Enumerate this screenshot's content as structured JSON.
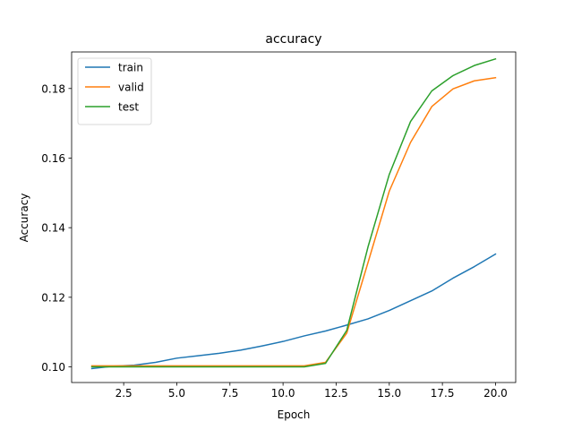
{
  "chart_data": {
    "type": "line",
    "title": "accuracy",
    "xlabel": "Epoch",
    "ylabel": "Accuracy",
    "xlim": [
      0.05,
      20.95
    ],
    "ylim": [
      0.0955,
      0.1905
    ],
    "xticks": [
      2.5,
      5.0,
      7.5,
      10.0,
      12.5,
      15.0,
      17.5,
      20.0
    ],
    "xtick_labels": [
      "2.5",
      "5.0",
      "7.5",
      "10.0",
      "12.5",
      "15.0",
      "17.5",
      "20.0"
    ],
    "yticks": [
      0.1,
      0.12,
      0.14,
      0.16,
      0.18
    ],
    "ytick_labels": [
      "0.10",
      "0.12",
      "0.14",
      "0.16",
      "0.18"
    ],
    "grid": false,
    "legend_position": "upper-left",
    "x": [
      1,
      2,
      3,
      4,
      5,
      6,
      7,
      8,
      9,
      10,
      11,
      12,
      13,
      14,
      15,
      16,
      17,
      18,
      19,
      20
    ],
    "series": [
      {
        "name": "train",
        "color": "#1f77b4",
        "values": [
          0.0995,
          0.1002,
          0.1005,
          0.1013,
          0.1025,
          0.1032,
          0.1039,
          0.1048,
          0.106,
          0.1073,
          0.1089,
          0.1103,
          0.112,
          0.1138,
          0.1162,
          0.119,
          0.1218,
          0.1255,
          0.1288,
          0.1324
        ]
      },
      {
        "name": "valid",
        "color": "#ff7f0e",
        "values": [
          0.1003,
          0.1003,
          0.1003,
          0.1003,
          0.1003,
          0.1003,
          0.1003,
          0.1003,
          0.1003,
          0.1003,
          0.1003,
          0.1013,
          0.1097,
          0.13,
          0.1505,
          0.1645,
          0.1748,
          0.1799,
          0.1822,
          0.1831
        ]
      },
      {
        "name": "test",
        "color": "#2ca02c",
        "values": [
          0.1,
          0.1,
          0.1,
          0.1,
          0.1,
          0.1,
          0.1,
          0.1,
          0.1,
          0.1,
          0.1,
          0.101,
          0.1105,
          0.1345,
          0.1553,
          0.1705,
          0.1793,
          0.1837,
          0.1866,
          0.1885
        ]
      }
    ]
  }
}
